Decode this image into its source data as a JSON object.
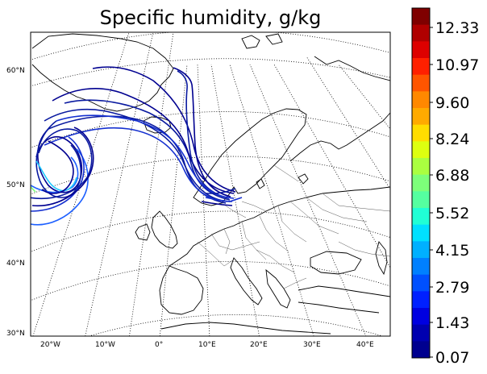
{
  "title": "Specific humidity, g/kg",
  "lat_labels": [
    "60°N",
    "50°N",
    "40°N",
    "30°N"
  ],
  "lon_labels": [
    "20°W",
    "10°W",
    "0°",
    "10°E",
    "20°E",
    "30°E",
    "40°E"
  ],
  "colorbar": {
    "tick_labels": [
      "12.33",
      "10.97",
      "9.60",
      "8.24",
      "6.88",
      "5.52",
      "4.15",
      "2.79",
      "1.43",
      "0.07"
    ],
    "colors": [
      "#7f0000",
      "#b00000",
      "#dd0000",
      "#ff2000",
      "#ff5500",
      "#ff8800",
      "#ffaa00",
      "#ffdd00",
      "#ddff10",
      "#aaff40",
      "#7dff7a",
      "#55ffa0",
      "#20ffd5",
      "#00e0ff",
      "#00b0ff",
      "#0080ff",
      "#0050ff",
      "#0020ff",
      "#0000e0",
      "#0000b0",
      "#00008f"
    ]
  },
  "trajectory_colors": {
    "main": "#0a1aa0",
    "dark": "#000090",
    "mid": "#1530d0",
    "light": "#1e60ff",
    "cyan": "#20c8ff",
    "green": "#7dff7a"
  }
}
